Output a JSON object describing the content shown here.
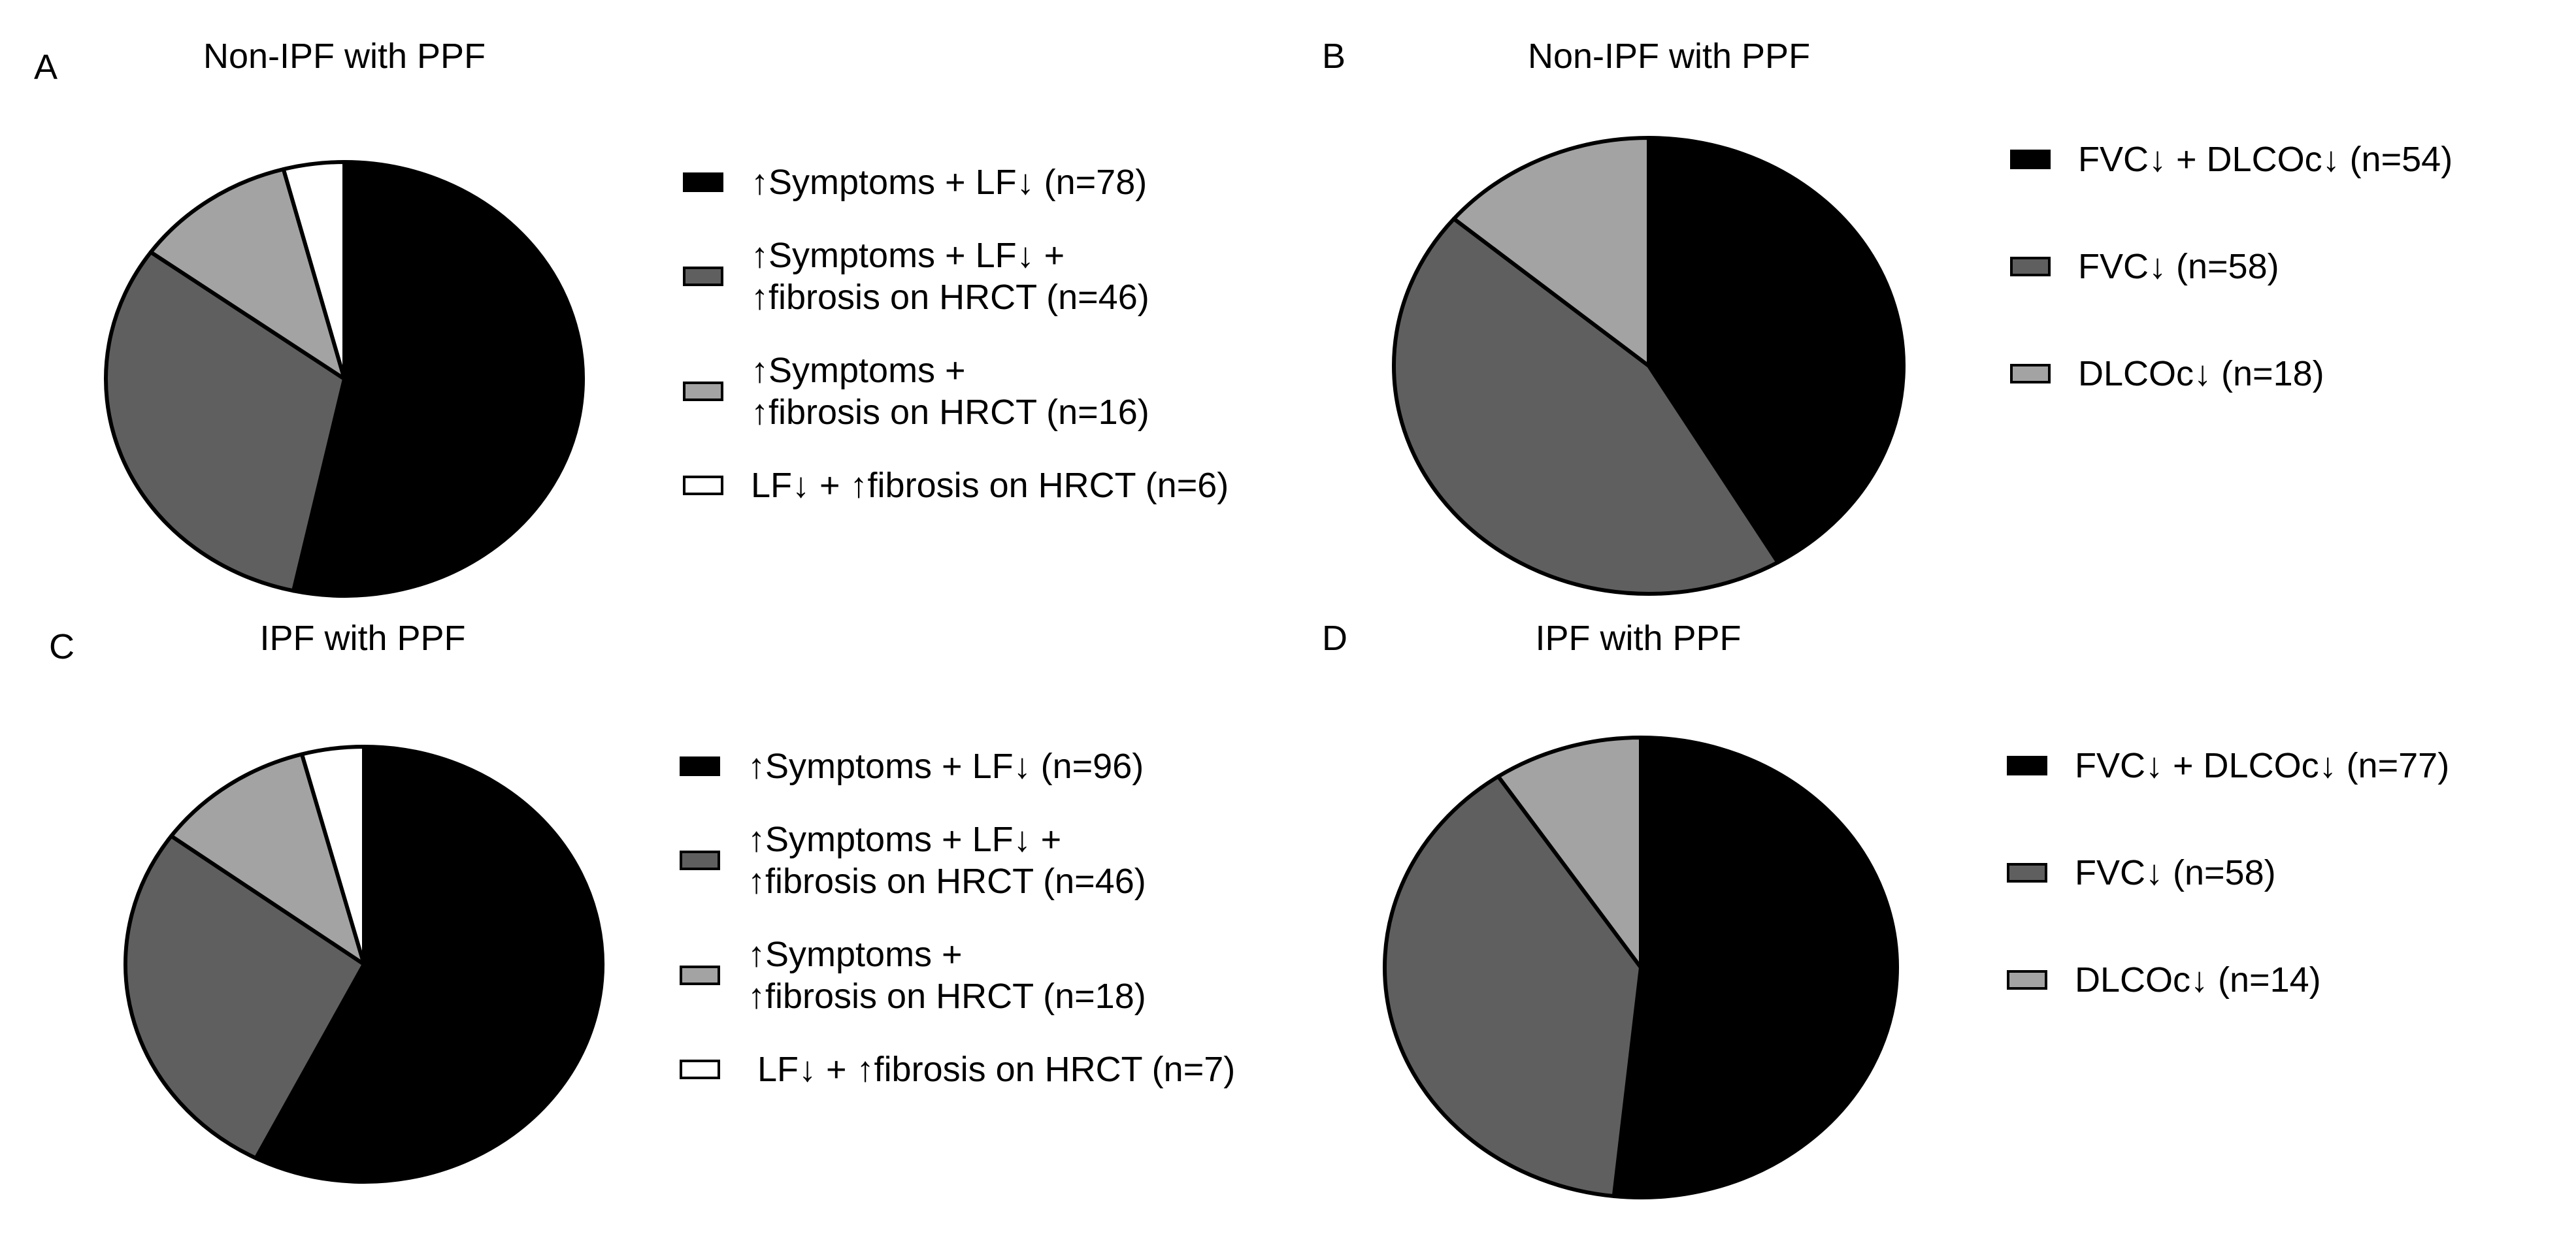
{
  "chart_data": [
    {
      "type": "pie",
      "panel": "A",
      "title": "Non-IPF with PPF",
      "slices": [
        {
          "label_lines": [
            "↑Symptoms + LF↓ (n=78)"
          ],
          "value": 78,
          "color": "#000000"
        },
        {
          "label_lines": [
            "↑Symptoms + LF↓ +",
            "↑fibrosis on HRCT (n=46)"
          ],
          "value": 46,
          "color": "#5f5f5f"
        },
        {
          "label_lines": [
            "↑Symptoms +",
            "↑fibrosis on HRCT (n=16)"
          ],
          "value": 16,
          "color": "#a3a3a3"
        },
        {
          "label_lines": [
            "LF↓ + ↑fibrosis on HRCT (n=6)"
          ],
          "value": 6,
          "color": "#ffffff"
        }
      ]
    },
    {
      "type": "pie",
      "panel": "B",
      "title": "Non-IPF with PPF",
      "slices": [
        {
          "label_lines": [
            "FVC↓ + DLCOc↓ (n=54)"
          ],
          "value": 54,
          "color": "#000000"
        },
        {
          "label_lines": [
            "FVC↓ (n=58)"
          ],
          "value": 58,
          "color": "#5f5f5f"
        },
        {
          "label_lines": [
            "DLCOc↓ (n=18)"
          ],
          "value": 18,
          "color": "#a3a3a3"
        }
      ]
    },
    {
      "type": "pie",
      "panel": "C",
      "title": "IPF with PPF",
      "slices": [
        {
          "label_lines": [
            "↑Symptoms + LF↓ (n=96)"
          ],
          "value": 96,
          "color": "#000000"
        },
        {
          "label_lines": [
            "↑Symptoms + LF↓ +",
            "↑fibrosis on HRCT (n=46)"
          ],
          "value": 46,
          "color": "#5f5f5f"
        },
        {
          "label_lines": [
            "↑Symptoms +",
            "↑fibrosis on HRCT (n=18)"
          ],
          "value": 18,
          "color": "#a3a3a3"
        },
        {
          "label_lines": [
            " LF↓ + ↑fibrosis on HRCT (n=7)"
          ],
          "value": 7,
          "color": "#ffffff"
        }
      ]
    },
    {
      "type": "pie",
      "panel": "D",
      "title": "IPF with PPF",
      "slices": [
        {
          "label_lines": [
            "FVC↓ + DLCOc↓ (n=77)"
          ],
          "value": 77,
          "color": "#000000"
        },
        {
          "label_lines": [
            "FVC↓ (n=58)"
          ],
          "value": 58,
          "color": "#5f5f5f"
        },
        {
          "label_lines": [
            "DLCOc↓ (n=14)"
          ],
          "value": 14,
          "color": "#a3a3a3"
        }
      ]
    }
  ]
}
